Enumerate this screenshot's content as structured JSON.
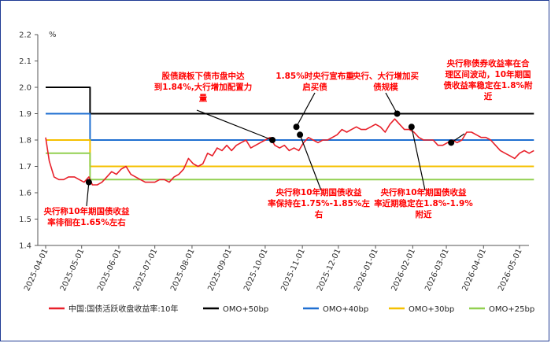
{
  "chart_data": {
    "type": "line",
    "title": "",
    "xlabel": "",
    "ylabel": "%",
    "ylim": [
      1.4,
      2.2
    ],
    "yticks": [
      "1.4",
      "1.5",
      "1.6",
      "1.7",
      "1.8",
      "1.9",
      "2.0",
      "2.1",
      "2.2"
    ],
    "x_ticks": [
      "2025-04-01",
      "2025-05-01",
      "2025-06-01",
      "2025-07-01",
      "2025-08-01",
      "2025-09-01",
      "2025-10-01",
      "2025-11-01",
      "2025-12-01",
      "2026-01-01",
      "2026-02-01",
      "2026-03-01",
      "2026-04-01",
      "2026-05-01"
    ],
    "grid": false,
    "legend_position": "bottom",
    "series": [
      {
        "name": "中国:国债活跃收盘收益率:10年",
        "color": "#e8202a",
        "points": [
          [
            "2025-04-01",
            1.81
          ],
          [
            "2025-04-04",
            1.72
          ],
          [
            "2025-04-08",
            1.66
          ],
          [
            "2025-04-12",
            1.65
          ],
          [
            "2025-04-16",
            1.65
          ],
          [
            "2025-04-20",
            1.66
          ],
          [
            "2025-04-25",
            1.66
          ],
          [
            "2025-04-29",
            1.65
          ],
          [
            "2025-05-03",
            1.64
          ],
          [
            "2025-05-07",
            1.66
          ],
          [
            "2025-05-10",
            1.63
          ],
          [
            "2025-05-14",
            1.63
          ],
          [
            "2025-05-18",
            1.64
          ],
          [
            "2025-05-22",
            1.66
          ],
          [
            "2025-05-26",
            1.68
          ],
          [
            "2025-05-30",
            1.67
          ],
          [
            "2025-06-03",
            1.69
          ],
          [
            "2025-06-07",
            1.7
          ],
          [
            "2025-06-11",
            1.67
          ],
          [
            "2025-06-15",
            1.66
          ],
          [
            "2025-06-19",
            1.65
          ],
          [
            "2025-06-23",
            1.64
          ],
          [
            "2025-06-27",
            1.64
          ],
          [
            "2025-07-01",
            1.64
          ],
          [
            "2025-07-05",
            1.65
          ],
          [
            "2025-07-09",
            1.65
          ],
          [
            "2025-07-13",
            1.64
          ],
          [
            "2025-07-17",
            1.66
          ],
          [
            "2025-07-21",
            1.67
          ],
          [
            "2025-07-25",
            1.69
          ],
          [
            "2025-07-29",
            1.73
          ],
          [
            "2025-08-02",
            1.71
          ],
          [
            "2025-08-06",
            1.7
          ],
          [
            "2025-08-10",
            1.71
          ],
          [
            "2025-08-14",
            1.75
          ],
          [
            "2025-08-18",
            1.74
          ],
          [
            "2025-08-22",
            1.77
          ],
          [
            "2025-08-26",
            1.76
          ],
          [
            "2025-08-30",
            1.78
          ],
          [
            "2025-09-03",
            1.76
          ],
          [
            "2025-09-07",
            1.78
          ],
          [
            "2025-09-11",
            1.79
          ],
          [
            "2025-09-15",
            1.8
          ],
          [
            "2025-09-19",
            1.77
          ],
          [
            "2025-09-23",
            1.78
          ],
          [
            "2025-09-27",
            1.79
          ],
          [
            "2025-10-01",
            1.8
          ],
          [
            "2025-10-05",
            1.81
          ],
          [
            "2025-10-09",
            1.78
          ],
          [
            "2025-10-13",
            1.77
          ],
          [
            "2025-10-17",
            1.78
          ],
          [
            "2025-10-21",
            1.76
          ],
          [
            "2025-10-25",
            1.77
          ],
          [
            "2025-10-29",
            1.76
          ],
          [
            "2025-11-02",
            1.79
          ],
          [
            "2025-11-06",
            1.81
          ],
          [
            "2025-11-10",
            1.8
          ],
          [
            "2025-11-14",
            1.79
          ],
          [
            "2025-11-18",
            1.8
          ],
          [
            "2025-11-22",
            1.8
          ],
          [
            "2025-11-26",
            1.81
          ],
          [
            "2025-11-30",
            1.82
          ],
          [
            "2025-12-04",
            1.84
          ],
          [
            "2025-12-08",
            1.83
          ],
          [
            "2025-12-12",
            1.84
          ],
          [
            "2025-12-16",
            1.85
          ],
          [
            "2025-12-20",
            1.84
          ],
          [
            "2025-12-24",
            1.84
          ],
          [
            "2025-12-28",
            1.85
          ],
          [
            "2026-01-01",
            1.86
          ],
          [
            "2026-01-05",
            1.85
          ],
          [
            "2026-01-09",
            1.83
          ],
          [
            "2026-01-13",
            1.86
          ],
          [
            "2026-01-17",
            1.88
          ],
          [
            "2026-01-21",
            1.86
          ],
          [
            "2026-01-25",
            1.84
          ],
          [
            "2026-01-29",
            1.84
          ],
          [
            "2026-02-02",
            1.83
          ],
          [
            "2026-02-06",
            1.81
          ],
          [
            "2026-02-10",
            1.8
          ],
          [
            "2026-02-14",
            1.8
          ],
          [
            "2026-02-18",
            1.8
          ],
          [
            "2026-02-22",
            1.78
          ],
          [
            "2026-02-26",
            1.78
          ],
          [
            "2026-03-02",
            1.79
          ],
          [
            "2026-03-06",
            1.8
          ],
          [
            "2026-03-10",
            1.79
          ],
          [
            "2026-03-14",
            1.8
          ],
          [
            "2026-03-18",
            1.83
          ],
          [
            "2026-03-22",
            1.83
          ],
          [
            "2026-03-26",
            1.82
          ],
          [
            "2026-03-30",
            1.81
          ],
          [
            "2026-04-03",
            1.81
          ],
          [
            "2026-04-07",
            1.8
          ],
          [
            "2026-04-11",
            1.78
          ],
          [
            "2026-04-15",
            1.76
          ],
          [
            "2026-04-19",
            1.75
          ],
          [
            "2026-04-23",
            1.74
          ],
          [
            "2026-04-27",
            1.73
          ],
          [
            "2026-05-01",
            1.75
          ],
          [
            "2026-05-05",
            1.76
          ],
          [
            "2026-05-09",
            1.75
          ],
          [
            "2026-05-13",
            1.76
          ]
        ]
      },
      {
        "name": "OMO+50bp",
        "color": "#000000",
        "points": [
          [
            "2025-04-01",
            2.0
          ],
          [
            "2025-05-08",
            2.0
          ],
          [
            "2025-05-08",
            1.9
          ],
          [
            "2026-05-13",
            1.9
          ]
        ]
      },
      {
        "name": "OMO+40bp",
        "color": "#1f6fd1",
        "points": [
          [
            "2025-04-01",
            1.9
          ],
          [
            "2025-05-08",
            1.9
          ],
          [
            "2025-05-08",
            1.8
          ],
          [
            "2026-05-13",
            1.8
          ]
        ]
      },
      {
        "name": "OMO+30bp",
        "color": "#f5c000",
        "points": [
          [
            "2025-04-01",
            1.8
          ],
          [
            "2025-05-08",
            1.8
          ],
          [
            "2025-05-08",
            1.7
          ],
          [
            "2026-05-13",
            1.7
          ]
        ]
      },
      {
        "name": "OMO+25bp",
        "color": "#92d050",
        "points": [
          [
            "2025-04-01",
            1.75
          ],
          [
            "2025-05-08",
            1.75
          ],
          [
            "2025-05-08",
            1.65
          ],
          [
            "2026-05-13",
            1.65
          ]
        ]
      }
    ],
    "annotations": [
      {
        "text": [
          "央行称10年期国债收益",
          "率徘徊在1.65%左右"
        ],
        "point": [
          "2025-05-07",
          1.64
        ]
      },
      {
        "text": [
          "股债跷板下债市盘中达",
          "到1.84%,大行增加配置力",
          "量"
        ],
        "point": [
          "2025-10-07",
          1.8
        ]
      },
      {
        "text": [
          "1.85%时央行宣布重",
          "启买债"
        ],
        "point": [
          "2025-10-27",
          1.85
        ]
      },
      {
        "text": [
          "央行称10年期国债收益",
          "率保持在1.75%-1.85%左",
          "右"
        ],
        "point": [
          "2025-10-30",
          1.82
        ]
      },
      {
        "text": [
          "央行、大行增加买",
          "债规模"
        ],
        "point": [
          "2026-01-19",
          1.9
        ]
      },
      {
        "text": [
          "央行称10年期国债收益",
          "率近期稳定在1.8%-1.9%",
          "附近"
        ],
        "point": [
          "2026-01-31",
          1.85
        ]
      },
      {
        "text": [
          "央行称债券收益率在合",
          "理区间波动，10年期国",
          "债收益率稳定在1.8%附",
          "近"
        ],
        "point": [
          "2026-03-05",
          1.79
        ]
      }
    ]
  }
}
